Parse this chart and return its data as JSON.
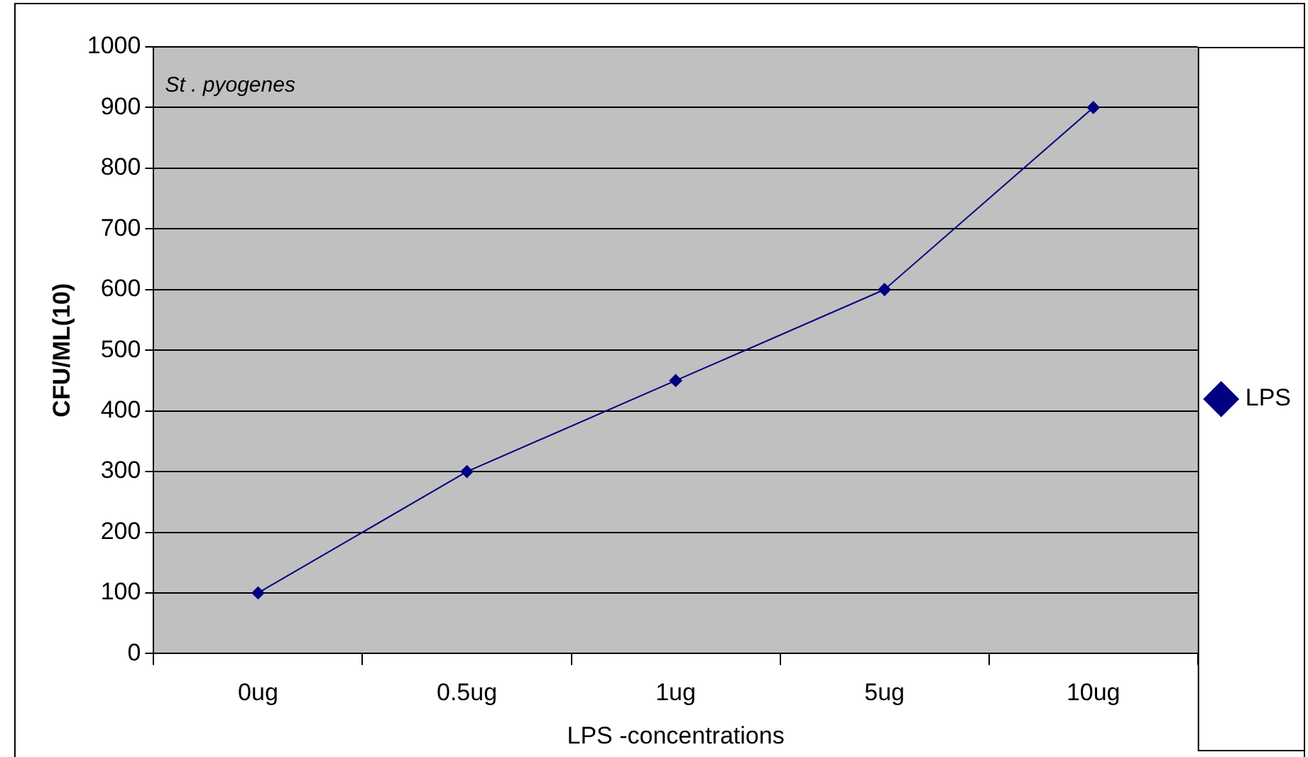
{
  "chart_data": {
    "type": "line",
    "xlabel": "LPS -concentrations",
    "ylabel": "CFU/ML(10)",
    "categories": [
      "0ug",
      "0.5ug",
      "1ug",
      "5ug",
      "10ug"
    ],
    "series": [
      {
        "name": "LPS",
        "color": "#000080",
        "values": [
          100,
          300,
          450,
          600,
          900
        ]
      }
    ],
    "ylim": [
      0,
      1000
    ],
    "yticks": [
      0,
      100,
      200,
      300,
      400,
      500,
      600,
      700,
      800,
      900,
      1000
    ],
    "grid": "y",
    "legend": "right",
    "marker": "diamond",
    "line_style": "solid",
    "annotations": [
      "St . pyogenes"
    ]
  }
}
